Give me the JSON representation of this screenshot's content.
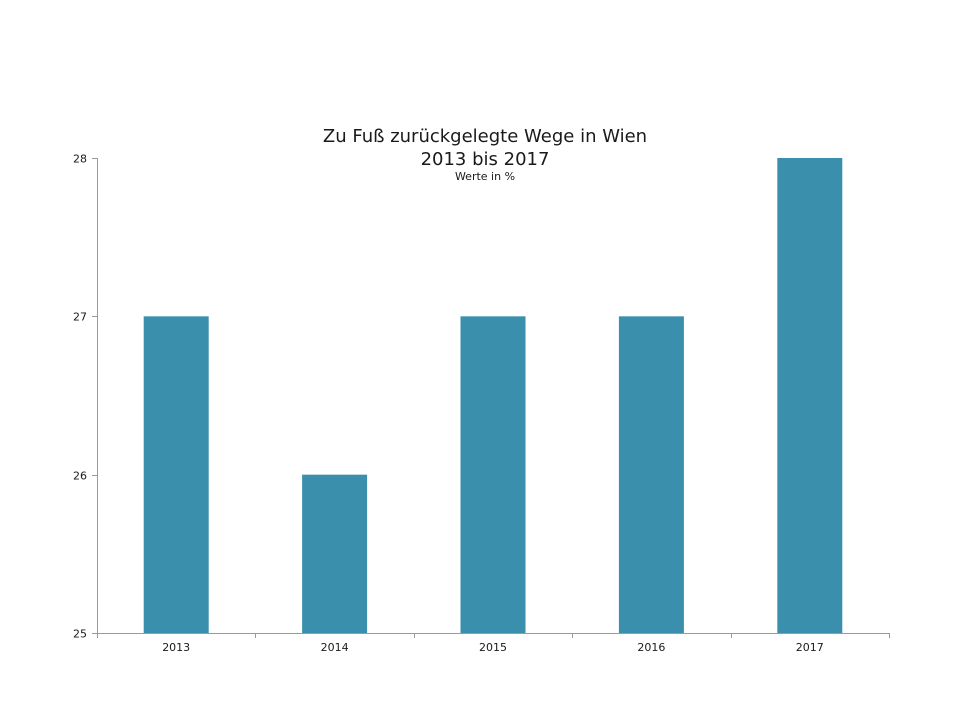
{
  "chart_data": {
    "type": "bar",
    "title": [
      "Zu Fuß zurückgelegte Wege in Wien",
      "2013 bis 2017"
    ],
    "subtitle": "Werte in %",
    "xlabel": "",
    "ylabel": "",
    "categories": [
      "2013",
      "2014",
      "2015",
      "2016",
      "2017"
    ],
    "values": [
      27,
      26,
      27,
      27,
      28
    ],
    "ylim": [
      25,
      28
    ],
    "yticks": [
      25,
      26,
      27,
      28
    ],
    "grid": false,
    "legend": "none",
    "bar_color": "#3a8fad",
    "axis_color": "#9a9a9a"
  }
}
